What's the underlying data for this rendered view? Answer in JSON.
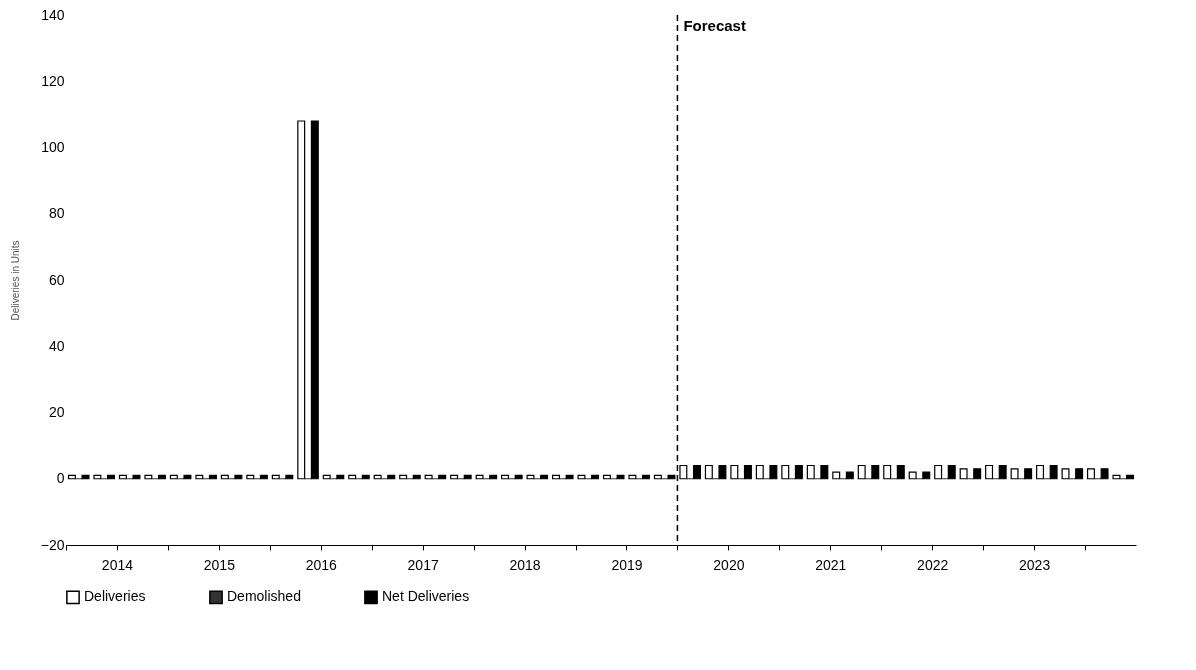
{
  "chart_data": {
    "type": "bar",
    "ylabel": "Deliveries in Units",
    "x": [
      2014.125,
      2014.375,
      2014.625,
      2014.875,
      2015.125,
      2015.375,
      2015.625,
      2015.875,
      2016.125,
      2016.375,
      2016.625,
      2016.875,
      2017.125,
      2017.375,
      2017.625,
      2017.875,
      2018.125,
      2018.375,
      2018.625,
      2018.875,
      2019.125,
      2019.375,
      2019.625,
      2019.875,
      2020.125,
      2020.375,
      2020.625,
      2020.875,
      2021.125,
      2021.375,
      2021.625,
      2021.875,
      2022.125,
      2022.375,
      2022.625,
      2022.875,
      2023.125,
      2023.375,
      2023.625,
      2023.875,
      2024.125,
      2024.375
    ],
    "series": [
      {
        "name": "Deliveries",
        "color": "#ffffff",
        "values": [
          1,
          1,
          1,
          1,
          1,
          1,
          1,
          1,
          1,
          108,
          1,
          1,
          1,
          1,
          1,
          1,
          1,
          1,
          1,
          1,
          1,
          1,
          1,
          1,
          4,
          4,
          4,
          4,
          4,
          4,
          2,
          4,
          4,
          2,
          4,
          3,
          4,
          3,
          4,
          3,
          3,
          1
        ]
      },
      {
        "name": "Demolished",
        "color": "#333333",
        "values": [
          0,
          0,
          0,
          0,
          0,
          0,
          0,
          0,
          0,
          0,
          0,
          0,
          0,
          0,
          0,
          0,
          0,
          0,
          0,
          0,
          0,
          0,
          0,
          0,
          0,
          0,
          0,
          0,
          0,
          0,
          0,
          0,
          0,
          0,
          0,
          0,
          0,
          0,
          0,
          0,
          0,
          0
        ]
      },
      {
        "name": "Net Deliveries",
        "color": "#000000",
        "values": [
          1,
          1,
          1,
          1,
          1,
          1,
          1,
          1,
          1,
          108,
          1,
          1,
          1,
          1,
          1,
          1,
          1,
          1,
          1,
          1,
          1,
          1,
          1,
          1,
          4,
          4,
          4,
          4,
          4,
          4,
          2,
          4,
          4,
          2,
          4,
          3,
          4,
          3,
          4,
          3,
          3,
          1
        ]
      }
    ],
    "xlim": [
      2014,
      2024.5
    ],
    "xticks": [
      {
        "value": 2014,
        "label": null
      },
      {
        "value": 2014.5,
        "label": "2014"
      },
      {
        "value": 2015,
        "label": null
      },
      {
        "value": 2015.5,
        "label": "2015"
      },
      {
        "value": 2016,
        "label": null
      },
      {
        "value": 2016.5,
        "label": "2016"
      },
      {
        "value": 2017,
        "label": null
      },
      {
        "value": 2017.5,
        "label": "2017"
      },
      {
        "value": 2018,
        "label": null
      },
      {
        "value": 2018.5,
        "label": "2018"
      },
      {
        "value": 2019,
        "label": null
      },
      {
        "value": 2019.5,
        "label": "2019"
      },
      {
        "value": 2020,
        "label": null
      },
      {
        "value": 2020.5,
        "label": "2020"
      },
      {
        "value": 2021,
        "label": null
      },
      {
        "value": 2021.5,
        "label": "2021"
      },
      {
        "value": 2022,
        "label": null
      },
      {
        "value": 2022.5,
        "label": "2022"
      },
      {
        "value": 2023,
        "label": null
      },
      {
        "value": 2023.5,
        "label": "2023"
      },
      {
        "value": 2024,
        "label": null
      }
    ],
    "ylim": [
      -20,
      140
    ],
    "yticks": [
      -20,
      0,
      20,
      40,
      60,
      80,
      100,
      120,
      140
    ],
    "ref_lines": [
      {
        "axis": "x",
        "value": 2020,
        "label": "Forecast",
        "color": "#000000",
        "line_style": "dashed"
      }
    ],
    "legend": "bottom",
    "grid": false
  }
}
